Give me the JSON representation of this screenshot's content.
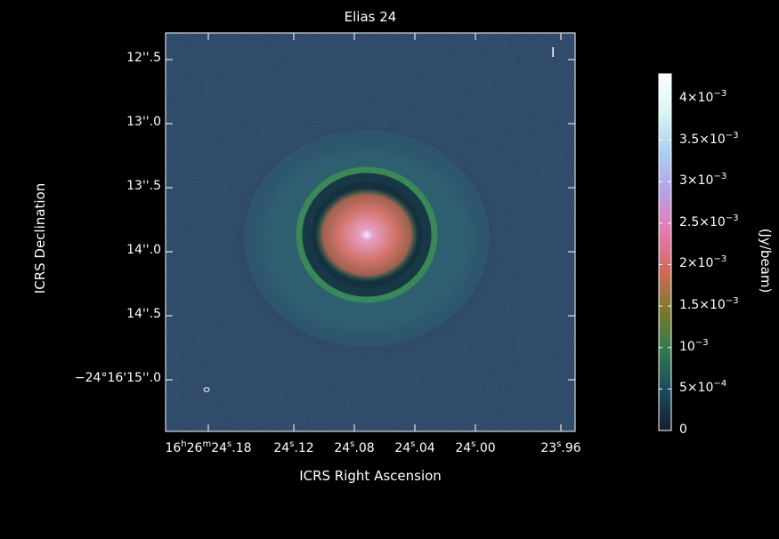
{
  "title": "Elias 24",
  "x_axis": {
    "label": "ICRS Right Ascension",
    "ticks": [
      {
        "h": "16",
        "hs": "h",
        "m": "26",
        "ms": "m",
        "s": "24",
        "ss": "s",
        "frac": ".18"
      },
      {
        "s": "24",
        "ss": "s",
        "frac": ".12"
      },
      {
        "s": "24",
        "ss": "s",
        "frac": ".08"
      },
      {
        "s": "24",
        "ss": "s",
        "frac": ".04"
      },
      {
        "s": "24",
        "ss": "s",
        "frac": ".00"
      },
      {
        "s": "23",
        "ss": "s",
        "frac": ".96"
      }
    ]
  },
  "y_axis": {
    "label": "ICRS Declination",
    "ticks": [
      "12''.5",
      "13''.0",
      "13''.5",
      "14''.0",
      "14''.5",
      "−24°16'15''.0"
    ]
  },
  "colorbar": {
    "label": "(Jy/beam)",
    "max": 0.0043,
    "ticks": [
      {
        "value": 0.004,
        "mant": "4×10",
        "exp": "−3"
      },
      {
        "value": 0.0035,
        "mant": "3.5×10",
        "exp": "−3"
      },
      {
        "value": 0.003,
        "mant": "3×10",
        "exp": "−3"
      },
      {
        "value": 0.0025,
        "mant": "2.5×10",
        "exp": "−3"
      },
      {
        "value": 0.002,
        "mant": "2×10",
        "exp": "−3"
      },
      {
        "value": 0.0015,
        "mant": "1.5×10",
        "exp": "−3"
      },
      {
        "value": 0.001,
        "mant": "10",
        "exp": "−3"
      },
      {
        "value": 0.0005,
        "mant": "5×10",
        "exp": "−4"
      },
      {
        "value": 0,
        "mant": "0",
        "exp": ""
      }
    ],
    "colors": [
      "#141e2e",
      "#1c4a5c",
      "#2f7a50",
      "#7a7a2a",
      "#d06a58",
      "#e87ab0",
      "#b8a0e8",
      "#a8d0f0",
      "#d8f4f4",
      "#ffffff"
    ]
  },
  "image": {
    "background_color": "#1c3556",
    "halo_color": "#2d6a72",
    "ring_color": "#3a8a55",
    "core_color": "#d3736a",
    "peak_color": "#e6f2ff"
  },
  "stokes_marker": "I"
}
